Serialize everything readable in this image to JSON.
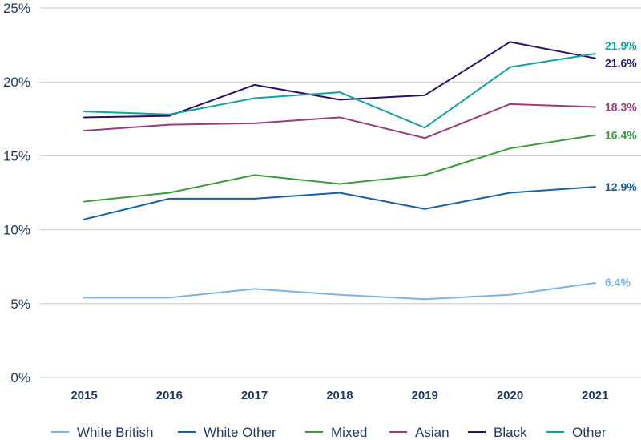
{
  "chart_data": {
    "type": "line",
    "x": [
      "2015",
      "2016",
      "2017",
      "2018",
      "2019",
      "2020",
      "2021"
    ],
    "ylim": [
      0,
      25
    ],
    "yticks": [
      0,
      5,
      10,
      15,
      20,
      25
    ],
    "ytick_labels": [
      "0%",
      "5%",
      "10%",
      "15%",
      "20%",
      "25%"
    ],
    "grid": true,
    "legend_position": "bottom",
    "series": [
      {
        "name": "White British",
        "color": "#7fb2e5",
        "values": [
          5.4,
          5.4,
          6.0,
          5.6,
          5.3,
          5.6,
          6.4
        ],
        "end_label": "6.4%"
      },
      {
        "name": "White Other",
        "color": "#1560a8",
        "values": [
          10.7,
          12.1,
          12.1,
          12.5,
          11.4,
          12.5,
          12.9
        ],
        "end_label": "12.9%"
      },
      {
        "name": "Mixed",
        "color": "#3a9a3e",
        "values": [
          11.9,
          12.5,
          13.7,
          13.1,
          13.7,
          15.5,
          16.4
        ],
        "end_label": "16.4%"
      },
      {
        "name": "Asian",
        "color": "#9c3a7a",
        "values": [
          16.7,
          17.1,
          17.2,
          17.6,
          16.2,
          18.5,
          18.3
        ],
        "end_label": "18.3%"
      },
      {
        "name": "Black",
        "color": "#2e0e6b",
        "values": [
          17.6,
          17.7,
          19.8,
          18.8,
          19.1,
          22.7,
          21.6
        ],
        "end_label": "21.6%"
      },
      {
        "name": "Other",
        "color": "#17a0a0",
        "values": [
          18.0,
          17.8,
          18.9,
          19.3,
          16.9,
          21.0,
          21.9
        ],
        "end_label": "21.9%"
      }
    ]
  }
}
